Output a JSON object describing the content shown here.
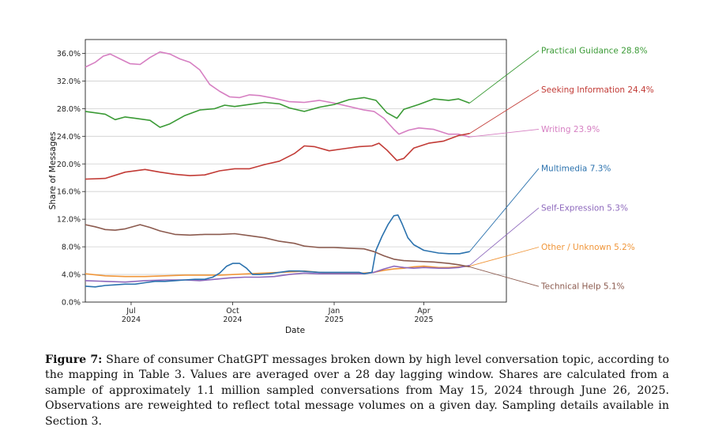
{
  "chart_data": {
    "type": "line",
    "xlabel": "Date",
    "ylabel": "Share of Messages",
    "ylim": [
      0,
      38
    ],
    "y_ticks": [
      0,
      4,
      8,
      12,
      16,
      20,
      24,
      28,
      32,
      36
    ],
    "y_tick_labels": [
      "0.0%",
      "4.0%",
      "8.0%",
      "12.0%",
      "16.0%",
      "20.0%",
      "24.0%",
      "28.0%",
      "32.0%",
      "36.0%"
    ],
    "x_range_days": [
      -20,
      403
    ],
    "x_ticks": [
      {
        "day": 26,
        "label": "Jul",
        "year": "2024"
      },
      {
        "day": 128,
        "label": "Oct",
        "year": "2024"
      },
      {
        "day": 230,
        "label": "Jan",
        "year": "2025"
      },
      {
        "day": 320,
        "label": "Apr",
        "year": "2025"
      }
    ],
    "x_day_zero": "2024-06-05",
    "grid": true,
    "series": [
      {
        "name": "Practical Guidance",
        "final": "28.8%",
        "color": "#3a9a35",
        "points": [
          [
            -20,
            27.6
          ],
          [
            0,
            27.2
          ],
          [
            10,
            26.4
          ],
          [
            20,
            26.8
          ],
          [
            30,
            26.6
          ],
          [
            45,
            26.3
          ],
          [
            55,
            25.3
          ],
          [
            65,
            25.8
          ],
          [
            80,
            27.0
          ],
          [
            95,
            27.8
          ],
          [
            110,
            28.0
          ],
          [
            120,
            28.5
          ],
          [
            130,
            28.3
          ],
          [
            145,
            28.6
          ],
          [
            160,
            28.9
          ],
          [
            175,
            28.7
          ],
          [
            185,
            28.1
          ],
          [
            200,
            27.6
          ],
          [
            215,
            28.2
          ],
          [
            230,
            28.6
          ],
          [
            245,
            29.3
          ],
          [
            260,
            29.6
          ],
          [
            272,
            29.2
          ],
          [
            283,
            27.4
          ],
          [
            293,
            26.6
          ],
          [
            300,
            27.9
          ],
          [
            315,
            28.6
          ],
          [
            330,
            29.4
          ],
          [
            345,
            29.2
          ],
          [
            355,
            29.4
          ],
          [
            366,
            28.8
          ]
        ]
      },
      {
        "name": "Seeking Information",
        "final": "24.4%",
        "color": "#c23b36",
        "points": [
          [
            -20,
            17.8
          ],
          [
            0,
            17.9
          ],
          [
            20,
            18.8
          ],
          [
            40,
            19.2
          ],
          [
            55,
            18.8
          ],
          [
            70,
            18.5
          ],
          [
            85,
            18.3
          ],
          [
            100,
            18.4
          ],
          [
            115,
            19.0
          ],
          [
            130,
            19.3
          ],
          [
            145,
            19.3
          ],
          [
            160,
            19.9
          ],
          [
            175,
            20.4
          ],
          [
            190,
            21.5
          ],
          [
            200,
            22.6
          ],
          [
            210,
            22.5
          ],
          [
            225,
            21.9
          ],
          [
            240,
            22.2
          ],
          [
            255,
            22.5
          ],
          [
            268,
            22.6
          ],
          [
            275,
            23.0
          ],
          [
            283,
            22.0
          ],
          [
            293,
            20.5
          ],
          [
            300,
            20.8
          ],
          [
            310,
            22.3
          ],
          [
            325,
            23.0
          ],
          [
            340,
            23.3
          ],
          [
            355,
            24.1
          ],
          [
            366,
            24.4
          ]
        ]
      },
      {
        "name": "Writing",
        "final": "23.9%",
        "color": "#d67fc2",
        "points": [
          [
            -20,
            34.0
          ],
          [
            -10,
            34.7
          ],
          [
            -2,
            35.6
          ],
          [
            5,
            35.9
          ],
          [
            15,
            35.2
          ],
          [
            25,
            34.5
          ],
          [
            35,
            34.4
          ],
          [
            45,
            35.4
          ],
          [
            55,
            36.2
          ],
          [
            65,
            35.9
          ],
          [
            75,
            35.2
          ],
          [
            85,
            34.7
          ],
          [
            95,
            33.6
          ],
          [
            105,
            31.5
          ],
          [
            115,
            30.5
          ],
          [
            125,
            29.7
          ],
          [
            135,
            29.6
          ],
          [
            145,
            30.0
          ],
          [
            155,
            29.9
          ],
          [
            170,
            29.5
          ],
          [
            185,
            29.0
          ],
          [
            200,
            28.9
          ],
          [
            215,
            29.2
          ],
          [
            230,
            28.8
          ],
          [
            245,
            28.3
          ],
          [
            260,
            27.8
          ],
          [
            270,
            27.6
          ],
          [
            280,
            26.6
          ],
          [
            290,
            25.0
          ],
          [
            295,
            24.3
          ],
          [
            305,
            24.9
          ],
          [
            315,
            25.2
          ],
          [
            330,
            25.0
          ],
          [
            345,
            24.3
          ],
          [
            355,
            24.3
          ],
          [
            366,
            23.9
          ]
        ]
      },
      {
        "name": "Multimedia",
        "final": "7.3%",
        "color": "#2b72ae",
        "points": [
          [
            -20,
            2.3
          ],
          [
            -10,
            2.2
          ],
          [
            0,
            2.4
          ],
          [
            10,
            2.5
          ],
          [
            20,
            2.6
          ],
          [
            30,
            2.6
          ],
          [
            40,
            2.8
          ],
          [
            50,
            3.0
          ],
          [
            60,
            3.0
          ],
          [
            70,
            3.1
          ],
          [
            80,
            3.2
          ],
          [
            90,
            3.3
          ],
          [
            100,
            3.3
          ],
          [
            108,
            3.6
          ],
          [
            115,
            4.2
          ],
          [
            122,
            5.2
          ],
          [
            128,
            5.6
          ],
          [
            135,
            5.6
          ],
          [
            142,
            4.9
          ],
          [
            148,
            4.0
          ],
          [
            155,
            4.0
          ],
          [
            165,
            4.1
          ],
          [
            175,
            4.3
          ],
          [
            185,
            4.5
          ],
          [
            195,
            4.5
          ],
          [
            205,
            4.4
          ],
          [
            215,
            4.3
          ],
          [
            225,
            4.3
          ],
          [
            235,
            4.3
          ],
          [
            245,
            4.3
          ],
          [
            255,
            4.3
          ],
          [
            260,
            4.1
          ],
          [
            268,
            4.3
          ],
          [
            272,
            7.5
          ],
          [
            278,
            9.5
          ],
          [
            284,
            11.2
          ],
          [
            290,
            12.5
          ],
          [
            294,
            12.6
          ],
          [
            298,
            11.4
          ],
          [
            304,
            9.3
          ],
          [
            310,
            8.3
          ],
          [
            320,
            7.5
          ],
          [
            335,
            7.1
          ],
          [
            345,
            7.0
          ],
          [
            356,
            7.0
          ],
          [
            366,
            7.3
          ]
        ]
      },
      {
        "name": "Self-Expression",
        "final": "5.3%",
        "color": "#8d68bc",
        "points": [
          [
            -20,
            3.1
          ],
          [
            0,
            3.0
          ],
          [
            20,
            2.9
          ],
          [
            40,
            3.1
          ],
          [
            60,
            3.2
          ],
          [
            80,
            3.2
          ],
          [
            95,
            3.1
          ],
          [
            110,
            3.3
          ],
          [
            125,
            3.5
          ],
          [
            140,
            3.6
          ],
          [
            155,
            3.6
          ],
          [
            170,
            3.7
          ],
          [
            185,
            4.0
          ],
          [
            200,
            4.2
          ],
          [
            215,
            4.1
          ],
          [
            230,
            4.1
          ],
          [
            245,
            4.1
          ],
          [
            260,
            4.1
          ],
          [
            270,
            4.3
          ],
          [
            280,
            4.8
          ],
          [
            290,
            5.2
          ],
          [
            300,
            5.0
          ],
          [
            310,
            4.9
          ],
          [
            320,
            5.0
          ],
          [
            335,
            4.9
          ],
          [
            345,
            4.9
          ],
          [
            355,
            5.0
          ],
          [
            366,
            5.3
          ]
        ]
      },
      {
        "name": "Other / Unknown",
        "final": "5.2%",
        "color": "#f0963a",
        "points": [
          [
            -20,
            4.1
          ],
          [
            0,
            3.8
          ],
          [
            20,
            3.7
          ],
          [
            40,
            3.7
          ],
          [
            60,
            3.8
          ],
          [
            80,
            3.9
          ],
          [
            100,
            3.9
          ],
          [
            115,
            3.9
          ],
          [
            130,
            4.0
          ],
          [
            145,
            4.1
          ],
          [
            160,
            4.2
          ],
          [
            175,
            4.3
          ],
          [
            190,
            4.4
          ],
          [
            200,
            4.5
          ],
          [
            215,
            4.3
          ],
          [
            230,
            4.2
          ],
          [
            245,
            4.2
          ],
          [
            260,
            4.2
          ],
          [
            270,
            4.3
          ],
          [
            280,
            4.6
          ],
          [
            290,
            4.8
          ],
          [
            300,
            4.9
          ],
          [
            310,
            5.1
          ],
          [
            320,
            5.2
          ],
          [
            335,
            5.0
          ],
          [
            345,
            5.0
          ],
          [
            355,
            5.1
          ],
          [
            366,
            5.2
          ]
        ]
      },
      {
        "name": "Technical Help",
        "final": "5.1%",
        "color": "#8b5a4e",
        "points": [
          [
            -20,
            11.2
          ],
          [
            -10,
            10.9
          ],
          [
            0,
            10.5
          ],
          [
            10,
            10.4
          ],
          [
            20,
            10.6
          ],
          [
            35,
            11.2
          ],
          [
            45,
            10.8
          ],
          [
            55,
            10.3
          ],
          [
            70,
            9.8
          ],
          [
            85,
            9.7
          ],
          [
            100,
            9.8
          ],
          [
            115,
            9.8
          ],
          [
            130,
            9.9
          ],
          [
            145,
            9.6
          ],
          [
            160,
            9.3
          ],
          [
            175,
            8.8
          ],
          [
            190,
            8.5
          ],
          [
            200,
            8.1
          ],
          [
            215,
            7.9
          ],
          [
            230,
            7.9
          ],
          [
            245,
            7.8
          ],
          [
            260,
            7.7
          ],
          [
            270,
            7.3
          ],
          [
            280,
            6.7
          ],
          [
            290,
            6.2
          ],
          [
            300,
            6.0
          ],
          [
            315,
            5.9
          ],
          [
            330,
            5.8
          ],
          [
            345,
            5.6
          ],
          [
            355,
            5.4
          ],
          [
            366,
            5.1
          ]
        ]
      }
    ],
    "legend": [
      {
        "name": "Practical Guidance",
        "value": "28.8%",
        "color": "#3a9a35"
      },
      {
        "name": "Seeking Information",
        "value": "24.4%",
        "color": "#c23b36"
      },
      {
        "name": "Writing",
        "value": "23.9%",
        "color": "#d67fc2"
      },
      {
        "name": "Multimedia",
        "value": "7.3%",
        "color": "#2b72ae"
      },
      {
        "name": "Self-Expression",
        "value": "5.3%",
        "color": "#8d68bc"
      },
      {
        "name": "Other / Unknown",
        "value": "5.2%",
        "color": "#f0963a"
      },
      {
        "name": "Technical Help",
        "value": "5.1%",
        "color": "#8b5a4e"
      }
    ]
  },
  "caption": {
    "label": "Figure 7:",
    "text": "Share of consumer ChatGPT messages broken down by high level conversation topic, according to the mapping in Table 3. Values are averaged over a 28 day lagging window. Shares are calculated from a sample of approximately 1.1 million sampled conversations from May 15, 2024 through June 26, 2025. Observations are reweighted to reflect total message volumes on a given day. Sampling details available in Section 3."
  }
}
